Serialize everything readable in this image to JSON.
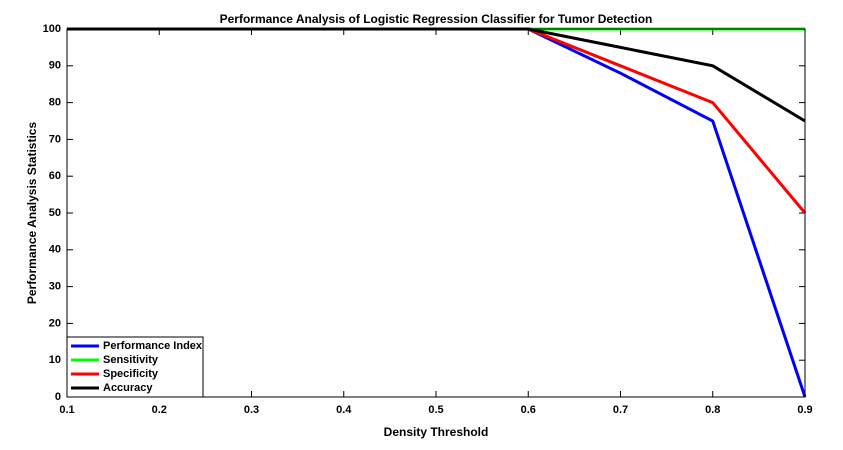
{
  "chart_data": {
    "type": "line",
    "title": "Performance Analysis of Logistic Regression Classifier for Tumor Detection",
    "xlabel": "Density Threshold",
    "ylabel": "Performance Analysis Statistics",
    "x": [
      0.1,
      0.2,
      0.3,
      0.4,
      0.5,
      0.6,
      0.7,
      0.8,
      0.9
    ],
    "series": [
      {
        "name": "Performance Index",
        "color": "#0000ff",
        "values": [
          100,
          100,
          100,
          100,
          100,
          100,
          88,
          75,
          0
        ]
      },
      {
        "name": "Sensitivity",
        "color": "#00ff00",
        "values": [
          100,
          100,
          100,
          100,
          100,
          100,
          100,
          100,
          100
        ]
      },
      {
        "name": "Specificity",
        "color": "#ff0000",
        "values": [
          100,
          100,
          100,
          100,
          100,
          100,
          90,
          80,
          50
        ]
      },
      {
        "name": "Accuracy",
        "color": "#000000",
        "values": [
          100,
          100,
          100,
          100,
          100,
          100,
          95,
          90,
          75
        ]
      }
    ],
    "xlim": [
      0.1,
      0.9
    ],
    "xticks": [
      0.1,
      0.2,
      0.3,
      0.4,
      0.5,
      0.6,
      0.7,
      0.8,
      0.9
    ],
    "ylim": [
      0,
      100
    ],
    "yticks": [
      0,
      10,
      20,
      30,
      40,
      50,
      60,
      70,
      80,
      90,
      100
    ],
    "grid": false,
    "legend": "lower left"
  }
}
